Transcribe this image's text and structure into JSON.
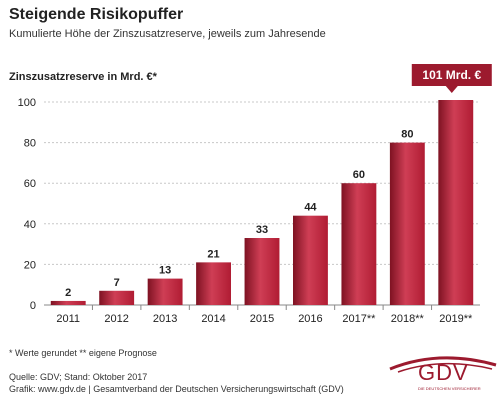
{
  "header": {
    "title": "Steigende Risikopuffer",
    "subtitle": "Kumulierte Höhe der Zinszusatzreserve, jeweils zum Jahresende"
  },
  "chart_data": {
    "type": "bar",
    "title": "Steigende Risikopuffer",
    "subtitle": "Kumulierte Höhe der Zinszusatzreserve, jeweils zum Jahresende",
    "ylabel": "Zinszusatzreserve in Mrd. €*",
    "xlabel": "",
    "categories": [
      "2011",
      "2012",
      "2013",
      "2014",
      "2015",
      "2016",
      "2017**",
      "2018**",
      "2019**"
    ],
    "values": [
      2,
      7,
      13,
      21,
      33,
      44,
      60,
      80,
      101
    ],
    "value_labels": [
      "2",
      "7",
      "13",
      "21",
      "33",
      "44",
      "60",
      "80",
      ""
    ],
    "callout": "101 Mrd. €",
    "ylim": [
      0,
      100
    ],
    "yticks": [
      "0",
      "20",
      "40",
      "60",
      "80",
      "100"
    ],
    "grid": true,
    "colors": {
      "bar": "#b01c33",
      "bar_light": "#cf3e55",
      "bar_dark": "#7e1222",
      "grid": "#c8c8c8",
      "callout": "#9c1a2e"
    }
  },
  "footer": {
    "footnote": "* Werte gerundet   ** eigene Prognose",
    "source": "Quelle: GDV; Stand: Oktober 2017",
    "credit": "Grafik: www.gdv.de | Gesamtverband der Deutschen Versicherungswirtschaft (GDV)"
  },
  "logo": {
    "text": "GDV",
    "subtext": "DIE DEUTSCHEN VERSICHERER"
  }
}
